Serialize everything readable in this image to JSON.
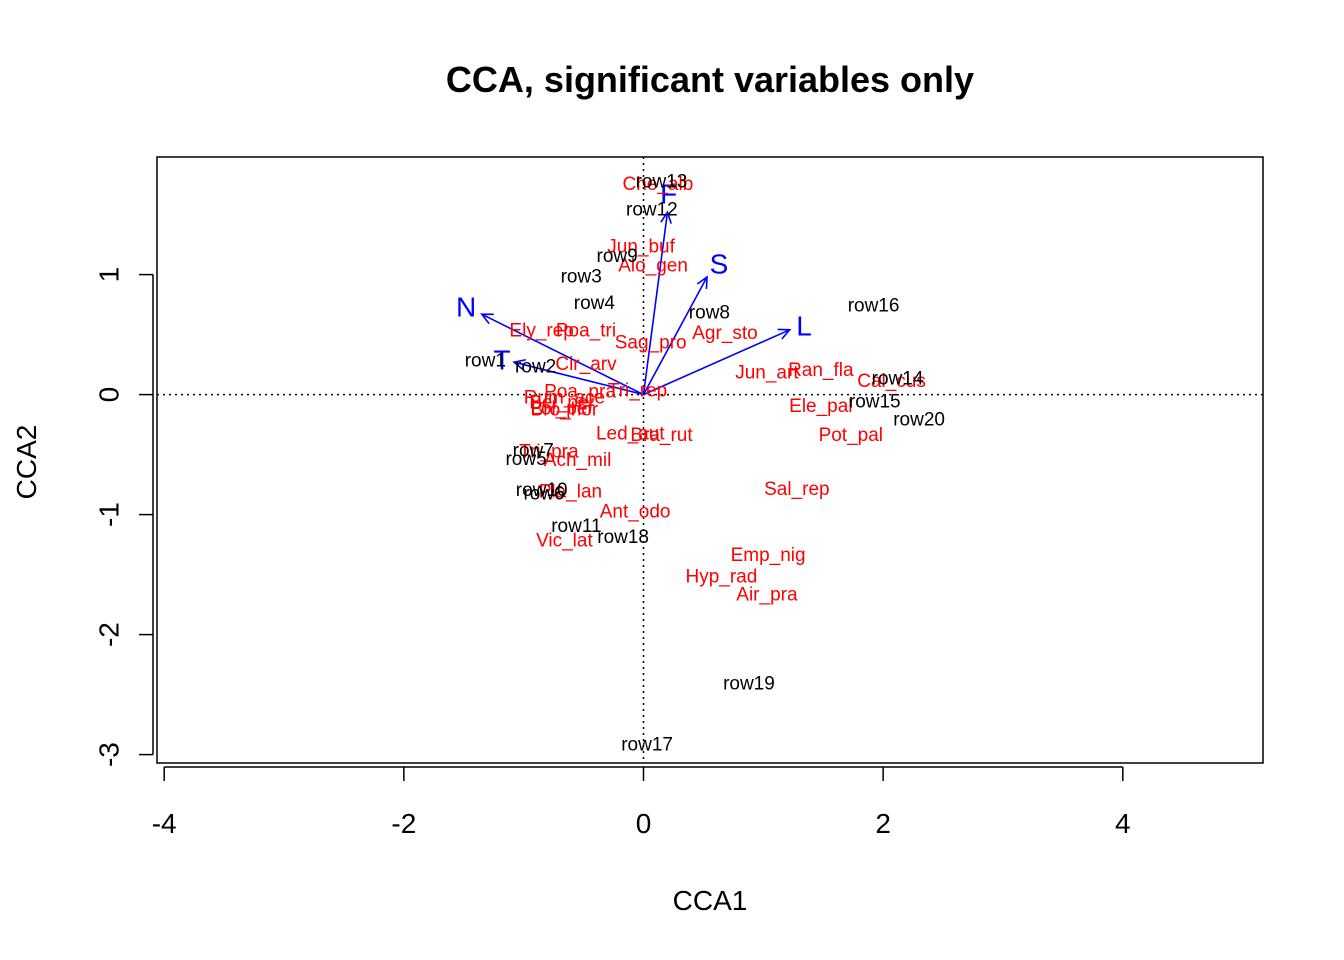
{
  "chart_data": {
    "type": "scatter",
    "title": "CCA, significant variables only",
    "xlabel": "CCA1",
    "ylabel": "CCA2",
    "xlim": [
      -4.06,
      5.17
    ],
    "ylim": [
      -3.07,
      1.98
    ],
    "xticks": [
      "-4",
      "-2",
      "0",
      "2",
      "4"
    ],
    "xtick_values": [
      -4,
      -2,
      0,
      2,
      4
    ],
    "yticks": [
      "-3",
      "-2",
      "-1",
      "0",
      "1"
    ],
    "ytick_values": [
      -3,
      -2,
      -1,
      0,
      1
    ],
    "reference_lines": {
      "x": 0,
      "y": 0,
      "style": "dotted"
    },
    "colors": {
      "sites": "#000000",
      "species": "#ff0000",
      "biplot": "#0000ff"
    },
    "sites": [
      {
        "label": "row1",
        "x": -1.32,
        "y": 0.28
      },
      {
        "label": "row2",
        "x": -0.9,
        "y": 0.23
      },
      {
        "label": "row3",
        "x": -0.52,
        "y": 0.98
      },
      {
        "label": "row4",
        "x": -0.41,
        "y": 0.76
      },
      {
        "label": "row5",
        "x": -0.98,
        "y": -0.54
      },
      {
        "label": "row6",
        "x": -0.83,
        "y": -0.83
      },
      {
        "label": "row7",
        "x": -0.92,
        "y": -0.47
      },
      {
        "label": "row8",
        "x": 0.55,
        "y": 0.68
      },
      {
        "label": "row9",
        "x": -0.22,
        "y": 1.15
      },
      {
        "label": "row10",
        "x": -0.85,
        "y": -0.8
      },
      {
        "label": "row11",
        "x": -0.56,
        "y": -1.1
      },
      {
        "label": "row12",
        "x": 0.07,
        "y": 1.54
      },
      {
        "label": "row13",
        "x": 0.15,
        "y": 1.77
      },
      {
        "label": "row14",
        "x": 2.12,
        "y": 0.13
      },
      {
        "label": "row15",
        "x": 1.93,
        "y": -0.06
      },
      {
        "label": "row16",
        "x": 1.92,
        "y": 0.74
      },
      {
        "label": "row17",
        "x": 0.03,
        "y": -2.92
      },
      {
        "label": "row18",
        "x": -0.17,
        "y": -1.19
      },
      {
        "label": "row19",
        "x": 0.88,
        "y": -2.41
      },
      {
        "label": "row20",
        "x": 2.3,
        "y": -0.21
      }
    ],
    "species": [
      {
        "label": "Ach_mil",
        "x": -0.55,
        "y": -0.55
      },
      {
        "label": "Agr_sto",
        "x": 0.68,
        "y": 0.51
      },
      {
        "label": "Air_pra",
        "x": 1.03,
        "y": -1.67
      },
      {
        "label": "Alo_gen",
        "x": 0.08,
        "y": 1.07
      },
      {
        "label": "Ant_odo",
        "x": -0.07,
        "y": -0.98
      },
      {
        "label": "Bel_per",
        "x": -0.68,
        "y": -0.07
      },
      {
        "label": "Bro_hor",
        "x": -0.66,
        "y": -0.13
      },
      {
        "label": "Che_alb",
        "x": 0.12,
        "y": 1.75
      },
      {
        "label": "Cir_arv",
        "x": -0.48,
        "y": 0.25
      },
      {
        "label": "Ele_pal",
        "x": 1.48,
        "y": -0.1
      },
      {
        "label": "Ely_rep",
        "x": -0.85,
        "y": 0.53
      },
      {
        "label": "Emp_nig",
        "x": 1.04,
        "y": -1.34
      },
      {
        "label": "Hyp_rad",
        "x": 0.65,
        "y": -1.52
      },
      {
        "label": "Jun_art",
        "x": 1.03,
        "y": 0.18
      },
      {
        "label": "Jun_buf",
        "x": -0.02,
        "y": 1.23
      },
      {
        "label": "Led_aut",
        "x": -0.11,
        "y": -0.33
      },
      {
        "label": "Lol_per",
        "x": -0.68,
        "y": -0.12
      },
      {
        "label": "Pla_lan",
        "x": -0.61,
        "y": -0.81
      },
      {
        "label": "Poa_pra",
        "x": -0.53,
        "y": 0.02
      },
      {
        "label": "Poa_tri",
        "x": -0.48,
        "y": 0.53
      },
      {
        "label": "Pot_pal",
        "x": 1.73,
        "y": -0.34
      },
      {
        "label": "Ran_fla",
        "x": 1.48,
        "y": 0.2
      },
      {
        "label": "Rum_ace",
        "x": -0.66,
        "y": -0.03
      },
      {
        "label": "Sag_pro",
        "x": 0.06,
        "y": 0.43
      },
      {
        "label": "Sal_rep",
        "x": 1.28,
        "y": -0.79
      },
      {
        "label": "Tri_pra",
        "x": -0.79,
        "y": -0.48
      },
      {
        "label": "Tri_rep",
        "x": -0.05,
        "y": 0.03
      },
      {
        "label": "Vic_lat",
        "x": -0.66,
        "y": -1.22
      },
      {
        "label": "Bra_rut",
        "x": 0.15,
        "y": -0.34
      },
      {
        "label": "Cal_cus",
        "x": 2.07,
        "y": 0.11
      }
    ],
    "biplot_arrows": [
      {
        "label": "N",
        "x": -1.35,
        "y": 0.67,
        "label_x": -1.48,
        "label_y": 0.73
      },
      {
        "label": "T",
        "x": -1.08,
        "y": 0.27,
        "label_x": -1.18,
        "label_y": 0.29
      },
      {
        "label": "F",
        "x": 0.2,
        "y": 1.52,
        "label_x": 0.21,
        "label_y": 1.67
      },
      {
        "label": "S",
        "x": 0.53,
        "y": 0.98,
        "label_x": 0.63,
        "label_y": 1.09
      },
      {
        "label": "L",
        "x": 1.22,
        "y": 0.54,
        "label_x": 1.34,
        "label_y": 0.57
      }
    ]
  }
}
